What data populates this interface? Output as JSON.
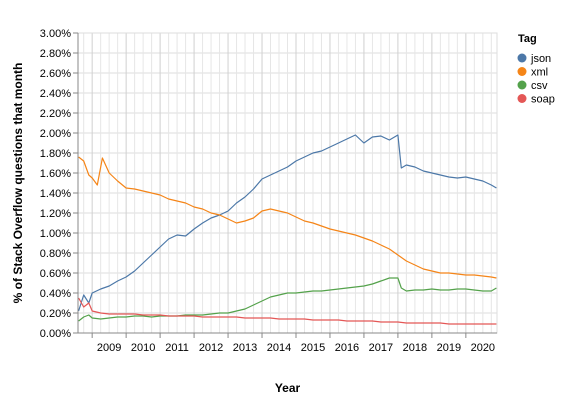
{
  "chart_data": {
    "type": "line",
    "xlabel": "Year",
    "ylabel": "% of Stack Overflow questions that month",
    "xlim": [
      2008.583,
      2020.917
    ],
    "ylim": [
      0,
      3.0
    ],
    "x_ticks": [
      "2009",
      "2010",
      "2011",
      "2012",
      "2013",
      "2014",
      "2015",
      "2016",
      "2017",
      "2018",
      "2019",
      "2020"
    ],
    "y_ticks": [
      "0.00%",
      "0.20%",
      "0.40%",
      "0.60%",
      "0.80%",
      "1.00%",
      "1.20%",
      "1.40%",
      "1.60%",
      "1.80%",
      "2.00%",
      "2.20%",
      "2.40%",
      "2.60%",
      "2.80%",
      "3.00%"
    ],
    "grid": true,
    "legend": {
      "title": "Tag",
      "position": "right"
    },
    "series": [
      {
        "name": "json",
        "color": "#4c78a8",
        "points": [
          [
            2008.6,
            0.22
          ],
          [
            2008.75,
            0.38
          ],
          [
            2008.9,
            0.3
          ],
          [
            2009.0,
            0.4
          ],
          [
            2009.25,
            0.44
          ],
          [
            2009.5,
            0.47
          ],
          [
            2009.75,
            0.52
          ],
          [
            2010.0,
            0.56
          ],
          [
            2010.25,
            0.62
          ],
          [
            2010.5,
            0.7
          ],
          [
            2010.75,
            0.78
          ],
          [
            2011.0,
            0.86
          ],
          [
            2011.25,
            0.94
          ],
          [
            2011.5,
            0.98
          ],
          [
            2011.75,
            0.97
          ],
          [
            2012.0,
            1.04
          ],
          [
            2012.25,
            1.1
          ],
          [
            2012.5,
            1.15
          ],
          [
            2012.75,
            1.18
          ],
          [
            2013.0,
            1.22
          ],
          [
            2013.25,
            1.3
          ],
          [
            2013.5,
            1.36
          ],
          [
            2013.75,
            1.44
          ],
          [
            2014.0,
            1.54
          ],
          [
            2014.25,
            1.58
          ],
          [
            2014.5,
            1.62
          ],
          [
            2014.75,
            1.66
          ],
          [
            2015.0,
            1.72
          ],
          [
            2015.25,
            1.76
          ],
          [
            2015.5,
            1.8
          ],
          [
            2015.75,
            1.82
          ],
          [
            2016.0,
            1.86
          ],
          [
            2016.25,
            1.9
          ],
          [
            2016.5,
            1.94
          ],
          [
            2016.75,
            1.98
          ],
          [
            2017.0,
            1.9
          ],
          [
            2017.25,
            1.96
          ],
          [
            2017.5,
            1.97
          ],
          [
            2017.75,
            1.93
          ],
          [
            2018.0,
            1.98
          ],
          [
            2018.1,
            1.65
          ],
          [
            2018.25,
            1.68
          ],
          [
            2018.5,
            1.66
          ],
          [
            2018.75,
            1.62
          ],
          [
            2019.0,
            1.6
          ],
          [
            2019.25,
            1.58
          ],
          [
            2019.5,
            1.56
          ],
          [
            2019.75,
            1.55
          ],
          [
            2020.0,
            1.56
          ],
          [
            2020.25,
            1.54
          ],
          [
            2020.5,
            1.52
          ],
          [
            2020.75,
            1.48
          ],
          [
            2020.9,
            1.45
          ]
        ]
      },
      {
        "name": "xml",
        "color": "#f58518",
        "points": [
          [
            2008.6,
            1.76
          ],
          [
            2008.75,
            1.72
          ],
          [
            2008.9,
            1.58
          ],
          [
            2009.0,
            1.55
          ],
          [
            2009.15,
            1.48
          ],
          [
            2009.3,
            1.75
          ],
          [
            2009.5,
            1.6
          ],
          [
            2009.75,
            1.52
          ],
          [
            2010.0,
            1.45
          ],
          [
            2010.25,
            1.44
          ],
          [
            2010.5,
            1.42
          ],
          [
            2010.75,
            1.4
          ],
          [
            2011.0,
            1.38
          ],
          [
            2011.25,
            1.34
          ],
          [
            2011.5,
            1.32
          ],
          [
            2011.75,
            1.3
          ],
          [
            2012.0,
            1.26
          ],
          [
            2012.25,
            1.24
          ],
          [
            2012.5,
            1.2
          ],
          [
            2012.75,
            1.18
          ],
          [
            2013.0,
            1.14
          ],
          [
            2013.25,
            1.1
          ],
          [
            2013.5,
            1.12
          ],
          [
            2013.75,
            1.15
          ],
          [
            2014.0,
            1.22
          ],
          [
            2014.25,
            1.24
          ],
          [
            2014.5,
            1.22
          ],
          [
            2014.75,
            1.2
          ],
          [
            2015.0,
            1.16
          ],
          [
            2015.25,
            1.12
          ],
          [
            2015.5,
            1.1
          ],
          [
            2015.75,
            1.07
          ],
          [
            2016.0,
            1.04
          ],
          [
            2016.25,
            1.02
          ],
          [
            2016.5,
            1.0
          ],
          [
            2016.75,
            0.98
          ],
          [
            2017.0,
            0.95
          ],
          [
            2017.25,
            0.92
          ],
          [
            2017.5,
            0.88
          ],
          [
            2017.75,
            0.84
          ],
          [
            2018.0,
            0.78
          ],
          [
            2018.25,
            0.72
          ],
          [
            2018.5,
            0.68
          ],
          [
            2018.75,
            0.64
          ],
          [
            2019.0,
            0.62
          ],
          [
            2019.25,
            0.6
          ],
          [
            2019.5,
            0.6
          ],
          [
            2019.75,
            0.59
          ],
          [
            2020.0,
            0.58
          ],
          [
            2020.25,
            0.58
          ],
          [
            2020.5,
            0.57
          ],
          [
            2020.75,
            0.56
          ],
          [
            2020.9,
            0.55
          ]
        ]
      },
      {
        "name": "csv",
        "color": "#54a24b",
        "points": [
          [
            2008.6,
            0.12
          ],
          [
            2008.75,
            0.16
          ],
          [
            2008.9,
            0.18
          ],
          [
            2009.0,
            0.15
          ],
          [
            2009.25,
            0.14
          ],
          [
            2009.5,
            0.15
          ],
          [
            2009.75,
            0.16
          ],
          [
            2010.0,
            0.16
          ],
          [
            2010.25,
            0.17
          ],
          [
            2010.5,
            0.17
          ],
          [
            2010.75,
            0.16
          ],
          [
            2011.0,
            0.17
          ],
          [
            2011.25,
            0.17
          ],
          [
            2011.5,
            0.17
          ],
          [
            2011.75,
            0.18
          ],
          [
            2012.0,
            0.18
          ],
          [
            2012.25,
            0.18
          ],
          [
            2012.5,
            0.19
          ],
          [
            2012.75,
            0.2
          ],
          [
            2013.0,
            0.2
          ],
          [
            2013.25,
            0.22
          ],
          [
            2013.5,
            0.24
          ],
          [
            2013.75,
            0.28
          ],
          [
            2014.0,
            0.32
          ],
          [
            2014.25,
            0.36
          ],
          [
            2014.5,
            0.38
          ],
          [
            2014.75,
            0.4
          ],
          [
            2015.0,
            0.4
          ],
          [
            2015.25,
            0.41
          ],
          [
            2015.5,
            0.42
          ],
          [
            2015.75,
            0.42
          ],
          [
            2016.0,
            0.43
          ],
          [
            2016.25,
            0.44
          ],
          [
            2016.5,
            0.45
          ],
          [
            2016.75,
            0.46
          ],
          [
            2017.0,
            0.47
          ],
          [
            2017.25,
            0.49
          ],
          [
            2017.5,
            0.52
          ],
          [
            2017.75,
            0.55
          ],
          [
            2018.0,
            0.55
          ],
          [
            2018.1,
            0.45
          ],
          [
            2018.25,
            0.42
          ],
          [
            2018.5,
            0.43
          ],
          [
            2018.75,
            0.43
          ],
          [
            2019.0,
            0.44
          ],
          [
            2019.25,
            0.43
          ],
          [
            2019.5,
            0.43
          ],
          [
            2019.75,
            0.44
          ],
          [
            2020.0,
            0.44
          ],
          [
            2020.25,
            0.43
          ],
          [
            2020.5,
            0.42
          ],
          [
            2020.75,
            0.42
          ],
          [
            2020.9,
            0.45
          ]
        ]
      },
      {
        "name": "soap",
        "color": "#e45756",
        "points": [
          [
            2008.6,
            0.35
          ],
          [
            2008.75,
            0.26
          ],
          [
            2008.9,
            0.3
          ],
          [
            2009.0,
            0.22
          ],
          [
            2009.25,
            0.2
          ],
          [
            2009.5,
            0.19
          ],
          [
            2009.75,
            0.19
          ],
          [
            2010.0,
            0.19
          ],
          [
            2010.25,
            0.19
          ],
          [
            2010.5,
            0.18
          ],
          [
            2010.75,
            0.18
          ],
          [
            2011.0,
            0.18
          ],
          [
            2011.25,
            0.17
          ],
          [
            2011.5,
            0.17
          ],
          [
            2011.75,
            0.17
          ],
          [
            2012.0,
            0.17
          ],
          [
            2012.25,
            0.16
          ],
          [
            2012.5,
            0.16
          ],
          [
            2012.75,
            0.16
          ],
          [
            2013.0,
            0.16
          ],
          [
            2013.25,
            0.16
          ],
          [
            2013.5,
            0.15
          ],
          [
            2013.75,
            0.15
          ],
          [
            2014.0,
            0.15
          ],
          [
            2014.25,
            0.15
          ],
          [
            2014.5,
            0.14
          ],
          [
            2014.75,
            0.14
          ],
          [
            2015.0,
            0.14
          ],
          [
            2015.25,
            0.14
          ],
          [
            2015.5,
            0.13
          ],
          [
            2015.75,
            0.13
          ],
          [
            2016.0,
            0.13
          ],
          [
            2016.25,
            0.13
          ],
          [
            2016.5,
            0.12
          ],
          [
            2016.75,
            0.12
          ],
          [
            2017.0,
            0.12
          ],
          [
            2017.25,
            0.12
          ],
          [
            2017.5,
            0.11
          ],
          [
            2017.75,
            0.11
          ],
          [
            2018.0,
            0.11
          ],
          [
            2018.25,
            0.1
          ],
          [
            2018.5,
            0.1
          ],
          [
            2018.75,
            0.1
          ],
          [
            2019.0,
            0.1
          ],
          [
            2019.25,
            0.1
          ],
          [
            2019.5,
            0.09
          ],
          [
            2019.75,
            0.09
          ],
          [
            2020.0,
            0.09
          ],
          [
            2020.25,
            0.09
          ],
          [
            2020.5,
            0.09
          ],
          [
            2020.75,
            0.09
          ],
          [
            2020.9,
            0.09
          ]
        ]
      }
    ]
  }
}
